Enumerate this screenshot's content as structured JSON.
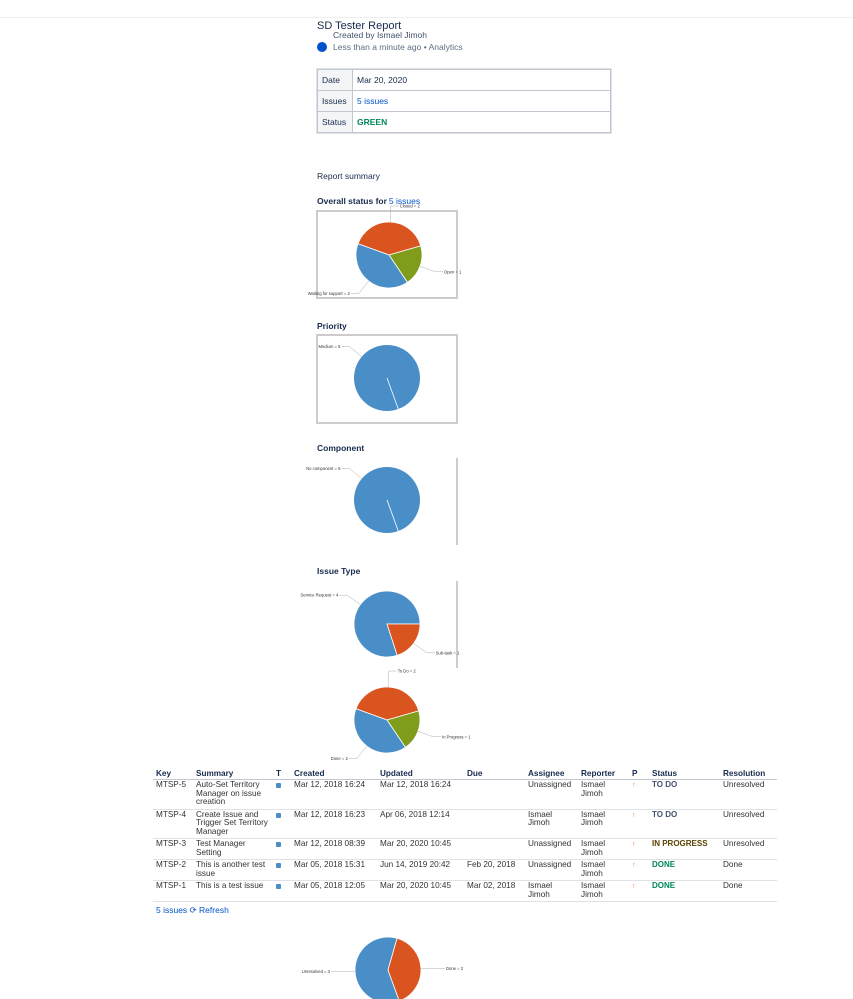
{
  "header": {
    "title": "SD Tester Report",
    "created_by": "Created by Ismael Jimoh",
    "meta": "Less than a minute ago",
    "app": "Analytics"
  },
  "info_table": {
    "rows": [
      [
        "Date",
        "Mar 20, 2020"
      ],
      [
        "Issues",
        "5 issues"
      ],
      [
        "Status",
        "GREEN"
      ]
    ]
  },
  "report_summary": "Report summary",
  "charts": [
    {
      "type": "pie",
      "title": "Overall status for",
      "link": "5 issues",
      "slices": [
        {
          "label": "Closed = 2",
          "value": 2,
          "color": "#d9541e"
        },
        {
          "label": "Open = 1",
          "value": 1,
          "color": "#7f9c1a"
        },
        {
          "label": "Waiting for support = 2",
          "value": 2,
          "color": "#4a8ec8"
        }
      ]
    },
    {
      "type": "pie",
      "title": "Priority",
      "slices": [
        {
          "label": "Medium = 5",
          "value": 5,
          "color": "#4a8ec8"
        }
      ]
    },
    {
      "type": "pie",
      "title": "Component",
      "slices": [
        {
          "label": "No component = 5",
          "value": 5,
          "color": "#4a8ec8"
        }
      ]
    },
    {
      "type": "pie",
      "title": "Issue Type",
      "slices": [
        {
          "label": "Service Request = 4",
          "value": 4,
          "color": "#4a8ec8"
        },
        {
          "label": "Sub-task = 1",
          "value": 1,
          "color": "#d9541e"
        }
      ]
    },
    {
      "type": "pie",
      "slices": [
        {
          "label": "To Do = 2",
          "value": 2,
          "color": "#d9541e"
        },
        {
          "label": "In Progress = 1",
          "value": 1,
          "color": "#7f9c1a"
        },
        {
          "label": "Done = 2",
          "value": 2,
          "color": "#4a8ec8"
        }
      ]
    },
    {
      "type": "pie",
      "slices": [
        {
          "label": "Unresolved = 3",
          "value": 3,
          "color": "#4a8ec8"
        },
        {
          "label": "Done = 2",
          "value": 2,
          "color": "#d9541e"
        }
      ]
    }
  ],
  "issues_table": {
    "columns": [
      "Key",
      "Summary",
      "T",
      "Created",
      "Updated",
      "Due",
      "Assignee",
      "Reporter",
      "P",
      "Status",
      "Resolution"
    ],
    "rows": [
      {
        "key": "MTSP-5",
        "summary": "Auto-Set Territory Manager on issue creation",
        "created": "Mar 12, 2018 16:24",
        "updated": "Mar 12, 2018 16:24",
        "assignee": "Unassigned",
        "reporter": "Ismael Jimoh",
        "status": "TO DO",
        "resolution": "Unresolved"
      },
      {
        "key": "MTSP-4",
        "summary": "Create Issue and Trigger Set Territory Manager",
        "created": "Mar 12, 2018 16:23",
        "updated": "Apr 06, 2018 12:14",
        "assignee": "Ismael Jimoh",
        "reporter": "Ismael Jimoh",
        "status": "TO DO",
        "resolution": "Unresolved"
      },
      {
        "key": "MTSP-3",
        "summary": "Test Manager Setting",
        "created": "Mar 12, 2018 08:39",
        "updated": "Mar 20, 2020 10:45",
        "assignee": "Unassigned",
        "reporter": "Ismael Jimoh",
        "status": "IN PROGRESS",
        "resolution": "Unresolved"
      },
      {
        "key": "MTSP-2",
        "summary": "This is another test issue",
        "created": "Mar 05, 2018 15:31",
        "updated": "Jun 14, 2019 20:42",
        "due": "Feb 20, 2018",
        "assignee": "Unassigned",
        "reporter": "Ismael Jimoh",
        "status": "DONE",
        "resolution": "Done"
      },
      {
        "key": "MTSP-1",
        "summary": "This is a test issue",
        "created": "Mar 05, 2018 12:05",
        "updated": "Mar 20, 2020 10:45",
        "due": "Mar 02, 2018",
        "assignee": "Ismael Jimoh",
        "reporter": "Ismael Jimoh",
        "status": "DONE",
        "resolution": "Done"
      }
    ]
  },
  "footer": {
    "count": "5 issues",
    "refresh": "Refresh"
  }
}
